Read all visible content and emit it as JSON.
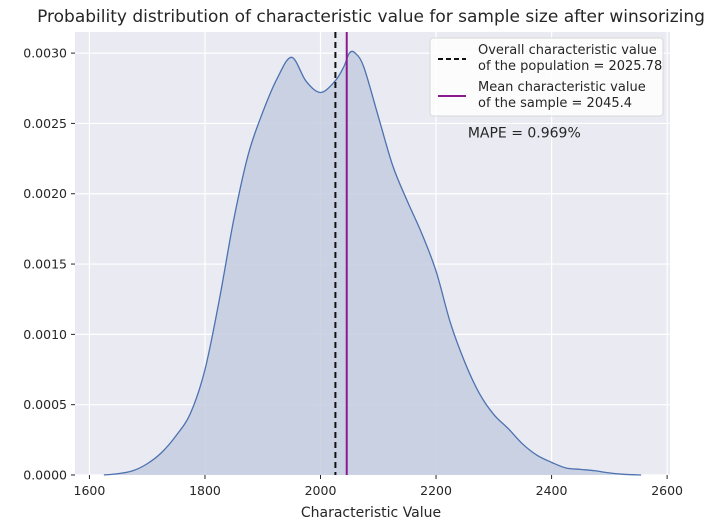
{
  "chart_data": {
    "type": "area",
    "title": "Probability distribution of characteristic value for sample size after winsorizing",
    "xlabel": "Characteristic Value",
    "ylabel": "",
    "xlim": [
      1575,
      2605
    ],
    "ylim": [
      0,
      0.00315
    ],
    "x_ticks": [
      1600,
      1800,
      2000,
      2200,
      2400,
      2600
    ],
    "y_ticks": [
      0.0,
      0.0005,
      0.001,
      0.0015,
      0.002,
      0.0025,
      0.003
    ],
    "x_tick_labels": [
      "1600",
      "1800",
      "2000",
      "2200",
      "2400",
      "2600"
    ],
    "y_tick_labels": [
      "0.0000",
      "0.0005",
      "0.0010",
      "0.0015",
      "0.0020",
      "0.0025",
      "0.0030"
    ],
    "grid": true,
    "series": [
      {
        "kind": "density",
        "x": [
          1625,
          1650,
          1675,
          1700,
          1725,
          1750,
          1775,
          1800,
          1825,
          1850,
          1875,
          1900,
          1925,
          1950,
          1975,
          2000,
          2025,
          2040,
          2050,
          2060,
          2075,
          2100,
          2125,
          2150,
          2175,
          2200,
          2225,
          2250,
          2275,
          2300,
          2325,
          2350,
          2375,
          2400,
          2425,
          2450,
          2475,
          2500,
          2525,
          2555
        ],
        "y": [
          0.0,
          1e-05,
          3e-05,
          8e-05,
          0.00016,
          0.00028,
          0.00044,
          0.00075,
          0.00125,
          0.00182,
          0.00228,
          0.00258,
          0.00282,
          0.00297,
          0.0028,
          0.00272,
          0.0028,
          0.0029,
          0.003,
          0.003,
          0.0029,
          0.00255,
          0.0022,
          0.00195,
          0.00172,
          0.00145,
          0.00108,
          0.0008,
          0.00058,
          0.00043,
          0.00033,
          0.00022,
          0.00014,
          9e-05,
          5e-05,
          4e-05,
          3e-05,
          1.5e-05,
          5e-06,
          0.0
        ]
      }
    ],
    "vlines": [
      {
        "x": 2025.78,
        "style": "dashed",
        "color": "#111111",
        "label_line1": "Overall characteristic value",
        "label_line2": "of the population = 2025.78"
      },
      {
        "x": 2045.4,
        "style": "solid",
        "color": "#8b1a8f",
        "label_line1": "Mean characteristic value",
        "label_line2": "of the sample  = 2045.4"
      }
    ],
    "annotation": {
      "text": "MAPE = 0.969%",
      "x": 2255,
      "y": 0.0024
    },
    "legend_position": "top-right",
    "colors": {
      "background": "#eaeaf2",
      "grid": "#ffffff",
      "fill": "#c3cce0",
      "line": "#4c72b0"
    }
  }
}
